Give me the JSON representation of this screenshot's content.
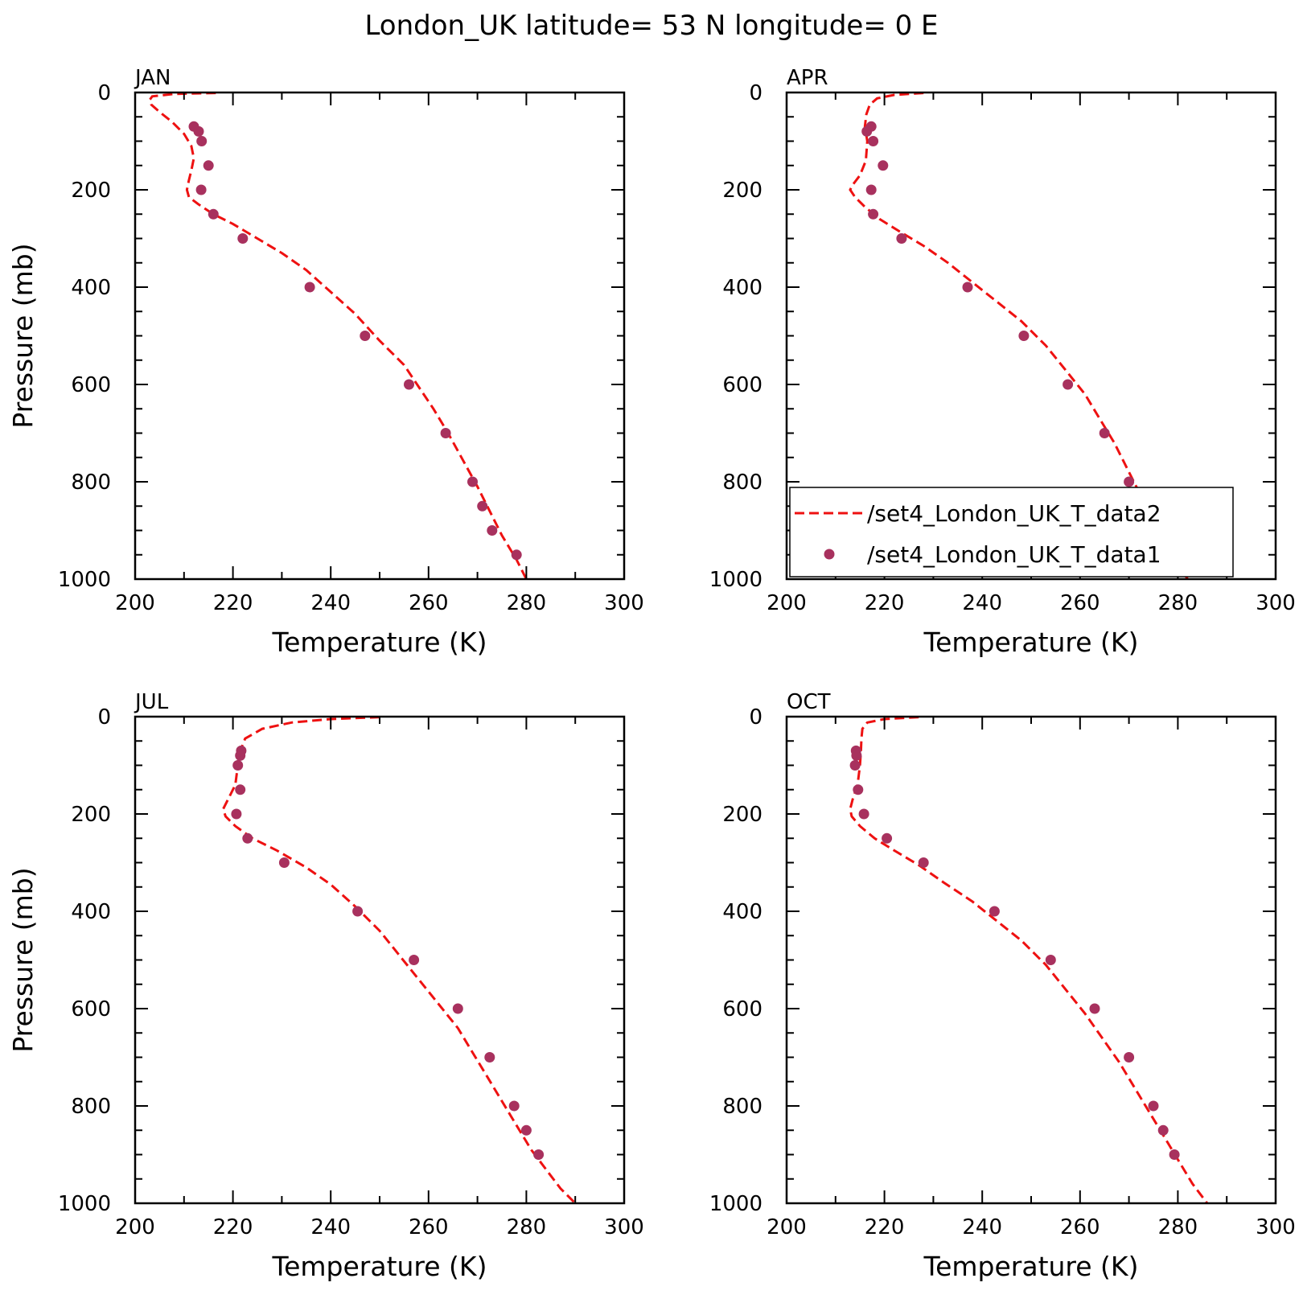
{
  "title": "London_UK  latitude= 53 N longitude= 0 E",
  "colors": {
    "model_line": "#ee1111",
    "obs_points": "#a8315e"
  },
  "legend": {
    "placement": "lower-right of APR panel",
    "entries": [
      {
        "label": "/set4_London_UK_T_data2",
        "style": "dashed-line"
      },
      {
        "label": "/set4_London_UK_T_data1",
        "style": "marker"
      }
    ]
  },
  "chart_data": [
    {
      "type": "line",
      "panel": "JAN",
      "xlabel": "Temperature (K)",
      "ylabel": "Pressure (mb)",
      "xlim": [
        200,
        300
      ],
      "ylim": [
        0,
        1000
      ],
      "y_inverted": true,
      "xticks": [
        "200",
        "220",
        "240",
        "260",
        "280",
        "300"
      ],
      "yticks": [
        "0",
        "200",
        "400",
        "600",
        "800",
        "1000"
      ],
      "series": [
        {
          "style": "dashed-line",
          "x": [
            216.5,
            208,
            203.5,
            203,
            203.3,
            205,
            207.5,
            210,
            211.5,
            212,
            211.5,
            211,
            210.6,
            211,
            213,
            216,
            220,
            225,
            230,
            235,
            240,
            245,
            250,
            255,
            258,
            261,
            264,
            267,
            270,
            272.5,
            275,
            278,
            280
          ],
          "y": [
            1,
            3,
            8,
            15,
            25,
            40,
            60,
            85,
            110,
            135,
            160,
            180,
            200,
            215,
            230,
            250,
            270,
            300,
            330,
            365,
            410,
            455,
            510,
            560,
            605,
            650,
            700,
            755,
            810,
            860,
            910,
            960,
            1000
          ]
        },
        {
          "style": "marker",
          "x": [
            212,
            213,
            213.6,
            215,
            213.5,
            216,
            222,
            235.7,
            247,
            256,
            263.5,
            269,
            271,
            273,
            278
          ],
          "y": [
            70,
            80,
            100,
            150,
            200,
            250,
            300,
            400,
            500,
            600,
            700,
            800,
            850,
            900,
            950
          ]
        }
      ]
    },
    {
      "type": "line",
      "panel": "APR",
      "xlabel": "Temperature (K)",
      "ylabel": "",
      "xlim": [
        200,
        300
      ],
      "ylim": [
        0,
        1000
      ],
      "y_inverted": true,
      "xticks": [
        "200",
        "220",
        "240",
        "260",
        "280",
        "300"
      ],
      "yticks": [
        "0",
        "200",
        "400",
        "600",
        "800",
        "1000"
      ],
      "series": [
        {
          "style": "dashed-line",
          "x": [
            228,
            222,
            218.5,
            217,
            216.3,
            216,
            216.5,
            216.2,
            215,
            213.5,
            213,
            214,
            216,
            219,
            223,
            228,
            233,
            238,
            243,
            248,
            253,
            257,
            261,
            264,
            267,
            269.5,
            272,
            274.5,
            277,
            280,
            282
          ],
          "y": [
            1,
            5,
            12,
            25,
            45,
            70,
            100,
            140,
            170,
            190,
            200,
            215,
            235,
            260,
            285,
            315,
            350,
            390,
            430,
            470,
            520,
            570,
            620,
            670,
            720,
            770,
            820,
            870,
            920,
            970,
            1000
          ]
        },
        {
          "style": "marker",
          "x": [
            217.3,
            216.4,
            217.7,
            219.7,
            217.3,
            217.7,
            223.5,
            237,
            248.5,
            257.5,
            265,
            270,
            272.5,
            275
          ],
          "y": [
            70,
            80,
            100,
            150,
            200,
            250,
            300,
            400,
            500,
            600,
            700,
            800,
            850,
            900
          ]
        }
      ]
    },
    {
      "type": "line",
      "panel": "JUL",
      "xlabel": "Temperature (K)",
      "ylabel": "Pressure (mb)",
      "xlim": [
        200,
        300
      ],
      "ylim": [
        0,
        1000
      ],
      "y_inverted": true,
      "xticks": [
        "200",
        "220",
        "240",
        "260",
        "280",
        "300"
      ],
      "yticks": [
        "0",
        "200",
        "400",
        "600",
        "800",
        "1000"
      ],
      "series": [
        {
          "style": "dashed-line",
          "x": [
            250,
            240,
            232,
            226,
            222.5,
            221.5,
            221,
            220.5,
            219,
            218,
            218.5,
            220.5,
            224,
            229,
            235,
            240,
            245,
            250,
            254,
            258,
            262,
            266,
            269,
            272,
            275,
            278,
            281,
            284,
            287,
            290
          ],
          "y": [
            1,
            5,
            12,
            25,
            45,
            70,
            100,
            140,
            170,
            190,
            205,
            225,
            250,
            275,
            310,
            345,
            390,
            440,
            490,
            540,
            590,
            640,
            690,
            740,
            790,
            840,
            890,
            930,
            970,
            1000
          ]
        },
        {
          "style": "marker",
          "x": [
            221.7,
            221.5,
            221,
            221.5,
            220.7,
            223,
            230.5,
            245.5,
            257,
            266,
            272.5,
            277.5,
            280,
            282.5
          ],
          "y": [
            70,
            80,
            100,
            150,
            200,
            250,
            300,
            400,
            500,
            600,
            700,
            800,
            850,
            900
          ]
        }
      ]
    },
    {
      "type": "line",
      "panel": "OCT",
      "xlabel": "Temperature (K)",
      "ylabel": "",
      "xlim": [
        200,
        300
      ],
      "ylim": [
        0,
        1000
      ],
      "y_inverted": true,
      "xticks": [
        "200",
        "220",
        "240",
        "260",
        "280",
        "300"
      ],
      "yticks": [
        "0",
        "200",
        "400",
        "600",
        "800",
        "1000"
      ],
      "series": [
        {
          "style": "dashed-line",
          "x": [
            227,
            220,
            216.5,
            215.5,
            215.3,
            215.2,
            215,
            214.5,
            213.5,
            213,
            213.3,
            215,
            218,
            222,
            227,
            232,
            238,
            243,
            248,
            253,
            257,
            261,
            264.5,
            268,
            271,
            274,
            277,
            280,
            283,
            286
          ],
          "y": [
            1,
            5,
            12,
            25,
            45,
            70,
            100,
            140,
            170,
            190,
            205,
            225,
            250,
            275,
            305,
            340,
            380,
            420,
            460,
            510,
            560,
            610,
            660,
            710,
            760,
            810,
            860,
            910,
            960,
            1000
          ]
        },
        {
          "style": "marker",
          "x": [
            214.2,
            214.3,
            214,
            214.6,
            215.8,
            220.5,
            228,
            242.5,
            254,
            263,
            270,
            275,
            277,
            279.3
          ],
          "y": [
            70,
            80,
            100,
            150,
            200,
            250,
            300,
            400,
            500,
            600,
            700,
            800,
            850,
            900
          ]
        }
      ]
    }
  ]
}
